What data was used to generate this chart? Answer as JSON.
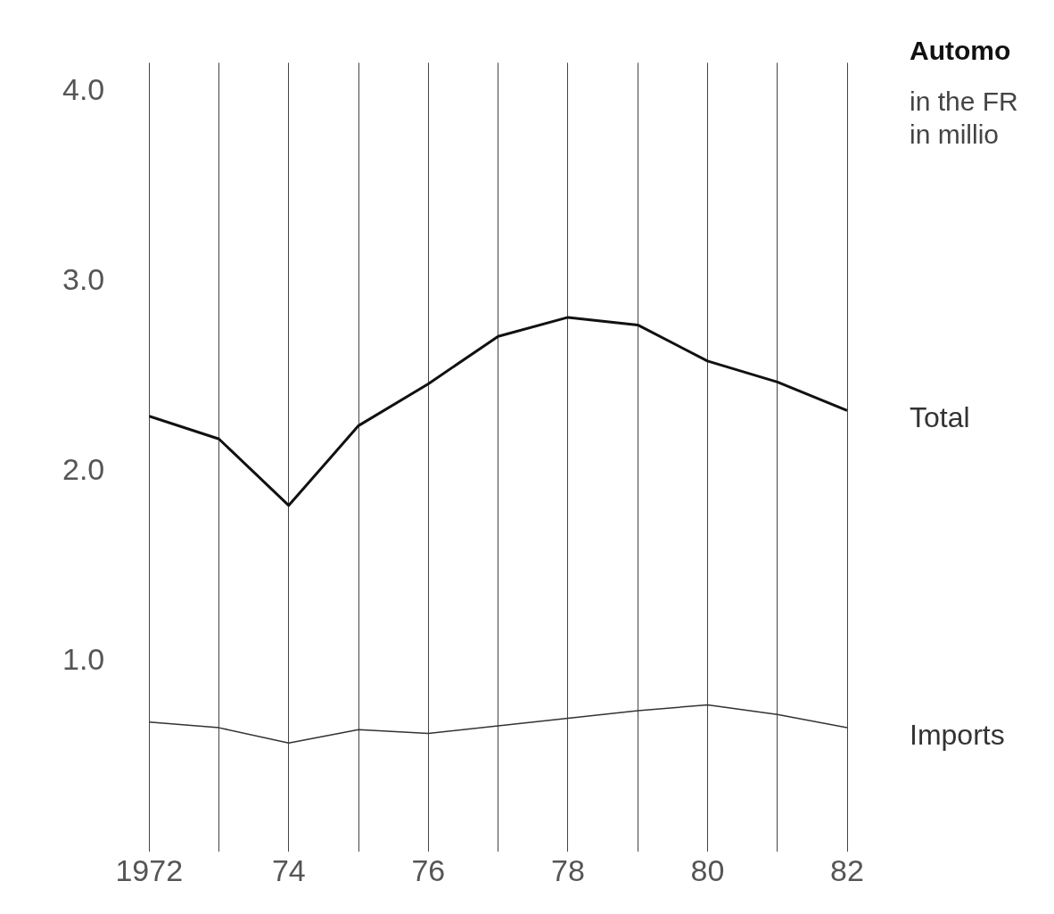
{
  "chart_data": {
    "type": "line",
    "title": "Automo",
    "subtitle": "in the FR\nin millio",
    "x": [
      1972,
      1973,
      1974,
      1975,
      1976,
      1977,
      1978,
      1979,
      1980,
      1981,
      1982
    ],
    "series": [
      {
        "name": "Total",
        "color": "#111111",
        "values": [
          2.29,
          2.17,
          1.82,
          2.24,
          2.46,
          2.71,
          2.81,
          2.77,
          2.58,
          2.47,
          2.32
        ]
      },
      {
        "name": "Imports",
        "color": "#333333",
        "values": [
          0.68,
          0.65,
          0.57,
          0.64,
          0.62,
          0.66,
          0.7,
          0.74,
          0.77,
          0.72,
          0.65
        ]
      }
    ],
    "xlim": [
      1972,
      1982
    ],
    "xticks": [
      {
        "value": 1972,
        "label": "1972"
      },
      {
        "value": 1973,
        "label": null
      },
      {
        "value": 1974,
        "label": "74"
      },
      {
        "value": 1975,
        "label": null
      },
      {
        "value": 1976,
        "label": "76"
      },
      {
        "value": 1977,
        "label": null
      },
      {
        "value": 1978,
        "label": "78"
      },
      {
        "value": 1979,
        "label": null
      },
      {
        "value": 1980,
        "label": "80"
      },
      {
        "value": 1981,
        "label": null
      },
      {
        "value": 1982,
        "label": "82"
      }
    ],
    "ylim": [
      0,
      4.15
    ],
    "yticks": [
      {
        "value": 1,
        "label": "1.0"
      },
      {
        "value": 2,
        "label": "2.0"
      },
      {
        "value": 3,
        "label": "3.0"
      },
      {
        "value": 4,
        "label": "4.0"
      }
    ],
    "grid": "x",
    "legend": false,
    "marker": "none",
    "line_style": "solid"
  }
}
